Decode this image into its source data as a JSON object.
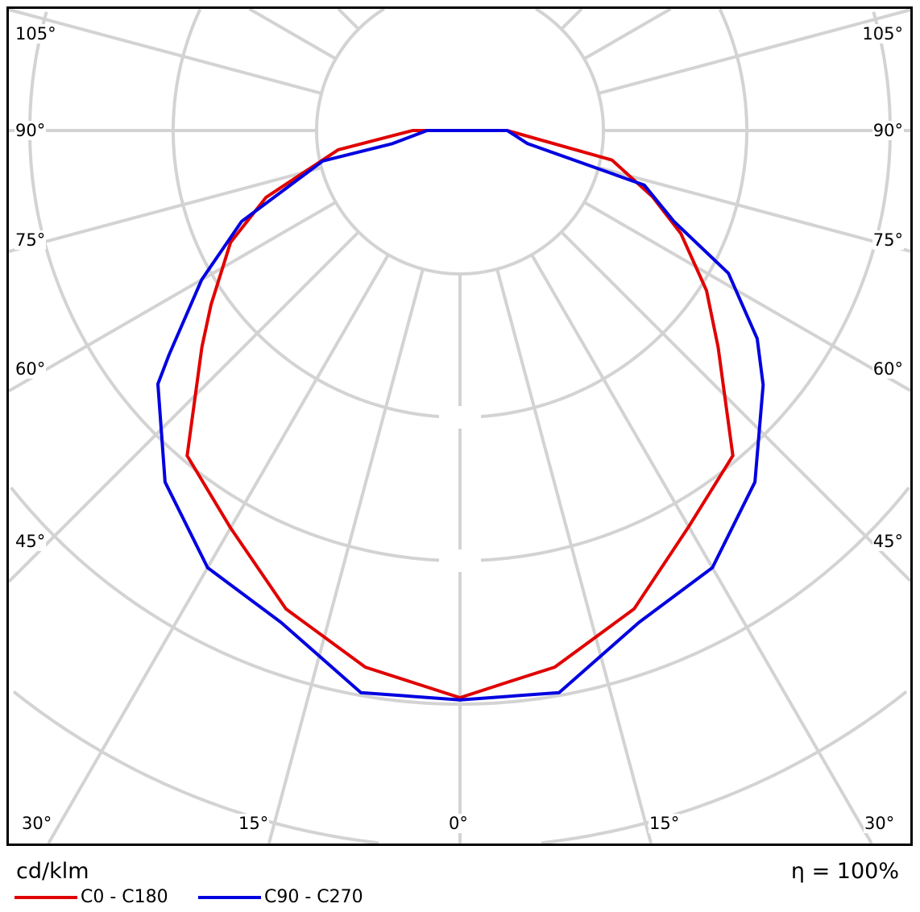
{
  "chart_data": {
    "type": "polar",
    "unit_label": "cd/klm",
    "efficiency_label": "η = 100%",
    "grid": true,
    "angle_labels_left": [
      "105°",
      "90°",
      "75°",
      "60°",
      "45°"
    ],
    "angle_labels_right": [
      "105°",
      "90°",
      "75°",
      "60°",
      "45°"
    ],
    "angle_labels_bottom": [
      "30°",
      "15°",
      "0°",
      "15°",
      "30°"
    ],
    "radial_scale_note": "radius in grid-ring units (no radial values printed)",
    "series": [
      {
        "name": "C0 - C180",
        "color": "#e00000",
        "c180_side": [
          [
            0,
            3.955
          ],
          [
            10,
            3.8
          ],
          [
            20,
            3.55
          ],
          [
            30,
            3.2
          ],
          [
            40,
            2.96
          ],
          [
            50,
            2.35
          ],
          [
            55,
            2.12
          ],
          [
            64,
            1.78
          ],
          [
            71,
            1.43
          ],
          [
            81,
            0.86
          ],
          [
            90,
            0.33
          ]
        ],
        "c0_side": [
          [
            0,
            3.955
          ],
          [
            5,
            3.86
          ],
          [
            10,
            3.8
          ],
          [
            20,
            3.55
          ],
          [
            30,
            3.19
          ],
          [
            40,
            2.96
          ],
          [
            50,
            2.35
          ],
          [
            57,
            2.05
          ],
          [
            65,
            1.7
          ],
          [
            71,
            1.42
          ],
          [
            79,
            1.08
          ],
          [
            90,
            0.33
          ]
        ]
      },
      {
        "name": "C90 - C270",
        "color": "#0000e0",
        "c270_side": [
          [
            0,
            3.97
          ],
          [
            10,
            3.98
          ],
          [
            20,
            3.65
          ],
          [
            30,
            3.52
          ],
          [
            40,
            3.2
          ],
          [
            50,
            2.75
          ],
          [
            52.4,
            2.56
          ],
          [
            60,
            2.08
          ],
          [
            67.4,
            1.65
          ],
          [
            77.5,
            0.98
          ],
          [
            79,
            0.48
          ],
          [
            90,
            0.23
          ]
        ],
        "c90_side": [
          [
            0,
            3.97
          ],
          [
            10,
            3.98
          ],
          [
            20,
            3.65
          ],
          [
            30,
            3.52
          ],
          [
            40,
            3.2
          ],
          [
            50,
            2.76
          ],
          [
            55,
            2.53
          ],
          [
            62,
            2.12
          ],
          [
            67,
            1.62
          ],
          [
            73.5,
            1.34
          ],
          [
            79,
            0.48
          ],
          [
            90,
            0.33
          ]
        ]
      }
    ]
  }
}
